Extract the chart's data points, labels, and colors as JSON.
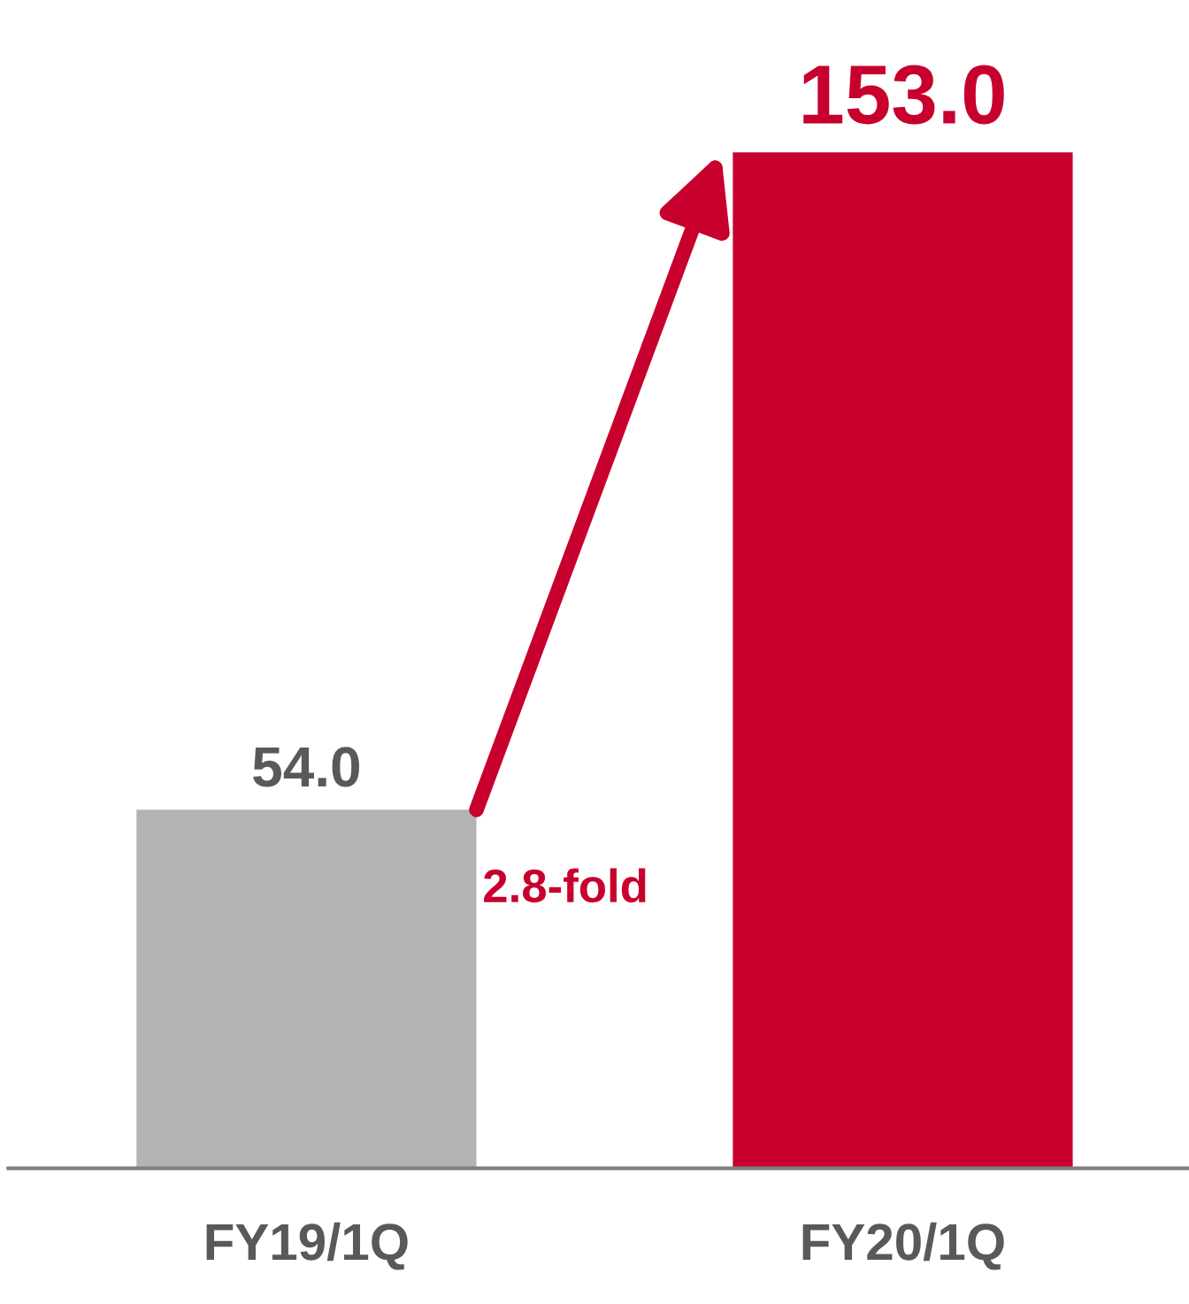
{
  "chart_data": {
    "type": "bar",
    "categories": [
      "FY19/1Q",
      "FY20/1Q"
    ],
    "values": [
      54.0,
      153.0
    ],
    "colors": [
      "#b3b3b3",
      "#c8002d"
    ],
    "value_labels": [
      "54.0",
      "153.0"
    ],
    "annotations": [
      "2.8-fold"
    ],
    "grid": false,
    "legend": false
  }
}
